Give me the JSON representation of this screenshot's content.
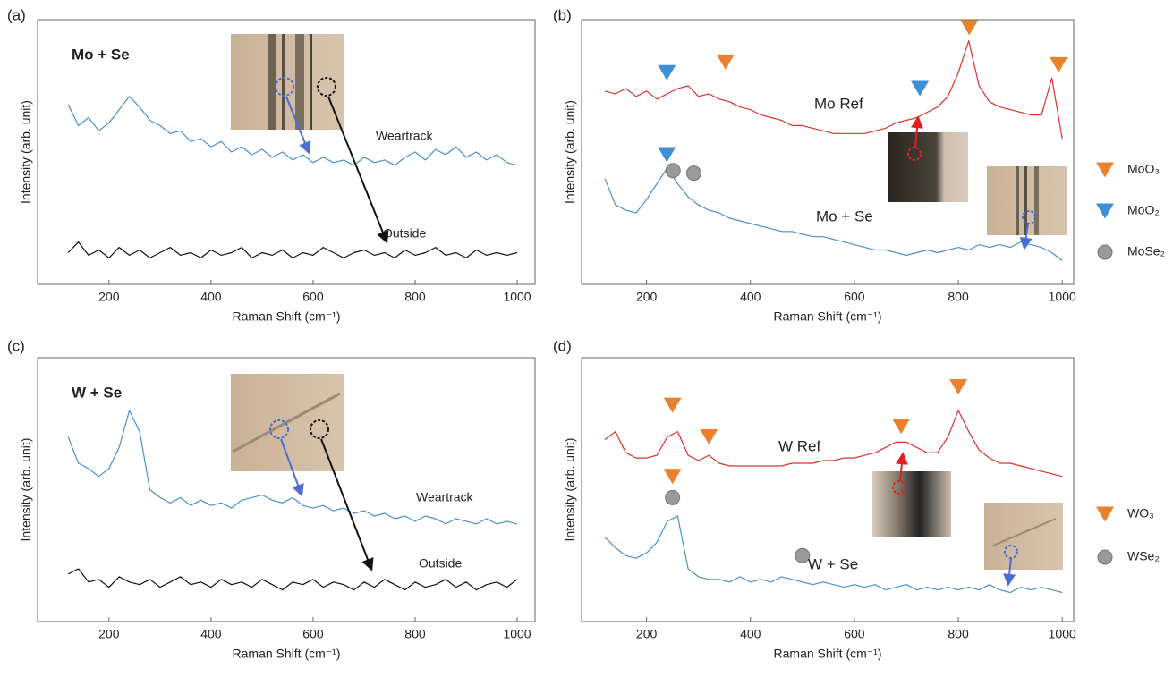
{
  "chart_data": [
    {
      "type": "line",
      "label": "(a)",
      "xlabel": "Raman Shift (cm⁻¹)",
      "ylabel": "Intensity (arb. unit)",
      "xlim": [
        60,
        1035
      ],
      "xticks": [
        200,
        400,
        600,
        800,
        1000
      ],
      "ylim": [
        0,
        100
      ],
      "annotations": [
        "Mo + Se",
        "Weartrack",
        "Outside"
      ],
      "x": [
        120,
        140,
        160,
        180,
        200,
        220,
        240,
        260,
        280,
        300,
        320,
        340,
        360,
        380,
        400,
        420,
        440,
        460,
        480,
        500,
        520,
        540,
        560,
        580,
        600,
        620,
        640,
        660,
        680,
        700,
        720,
        740,
        760,
        780,
        800,
        820,
        840,
        860,
        880,
        900,
        920,
        940,
        960,
        980,
        1000
      ],
      "series": [
        {
          "color": "#4a90c8",
          "values": [
            68,
            60,
            63,
            58,
            61,
            66,
            71,
            67,
            62,
            60,
            57,
            58,
            54,
            55,
            52,
            54,
            50,
            52,
            49,
            51,
            48,
            50,
            47,
            49,
            46,
            48,
            46,
            47,
            45,
            48,
            46,
            47,
            45,
            48,
            50,
            47,
            51,
            49,
            52,
            48,
            50,
            47,
            49,
            46,
            45
          ]
        },
        {
          "color": "#111111",
          "values": [
            12,
            16,
            11,
            13,
            10,
            14,
            11,
            13,
            10,
            12,
            14,
            11,
            12,
            10,
            13,
            11,
            12,
            14,
            10,
            12,
            11,
            13,
            10,
            12,
            11,
            14,
            12,
            10,
            12,
            13,
            11,
            12,
            10,
            13,
            11,
            12,
            14,
            11,
            12,
            10,
            13,
            11,
            12,
            11,
            12
          ]
        }
      ]
    },
    {
      "type": "line",
      "label": "(b)",
      "xlabel": "Raman Shift (cm⁻¹)",
      "ylabel": "Intensity (arb. unit)",
      "xlim": [
        75,
        1022
      ],
      "xticks": [
        200,
        400,
        600,
        800,
        1000
      ],
      "ylim": [
        0,
        100
      ],
      "annotations": [
        "Mo Ref",
        "Mo + Se"
      ],
      "x": [
        120,
        140,
        160,
        180,
        200,
        220,
        240,
        260,
        280,
        300,
        320,
        340,
        360,
        380,
        400,
        420,
        440,
        460,
        480,
        500,
        520,
        540,
        560,
        580,
        600,
        620,
        640,
        660,
        680,
        700,
        720,
        740,
        760,
        780,
        800,
        820,
        840,
        860,
        880,
        900,
        920,
        940,
        960,
        980,
        1000
      ],
      "series": [
        {
          "color": "#d9312b",
          "values": [
            73,
            72,
            74,
            71,
            73,
            70,
            72,
            74,
            75,
            71,
            72,
            70,
            69,
            67,
            66,
            64,
            63,
            62,
            60,
            60,
            59,
            58,
            57,
            57,
            57,
            57,
            58,
            59,
            61,
            62,
            63,
            65,
            67,
            71,
            80,
            92,
            75,
            69,
            67,
            66,
            65,
            64,
            64,
            78,
            55
          ]
        },
        {
          "color": "#4a90c8",
          "values": [
            40,
            30,
            28,
            27,
            32,
            38,
            44,
            38,
            33,
            30,
            28,
            27,
            25,
            24,
            23,
            22,
            21,
            20,
            20,
            19,
            18,
            18,
            17,
            16,
            15,
            14,
            13,
            13,
            12,
            11,
            12,
            13,
            12,
            13,
            14,
            13,
            15,
            14,
            15,
            14,
            16,
            15,
            14,
            12,
            9
          ]
        },
        {
          "name": "MoO₃",
          "marker": "triangle",
          "color": "#e8822e",
          "x": [
            352,
            821,
            993
          ],
          "values": [
            84,
            97,
            83
          ]
        },
        {
          "name": "MoO₂",
          "marker": "triangle",
          "color": "#3d8fd6",
          "x": [
            239,
            726,
            239
          ],
          "values": [
            80,
            74,
            49
          ]
        },
        {
          "name": "MoSe₂",
          "marker": "circle",
          "color": "#9a9a9a",
          "x": [
            251,
            291
          ],
          "values": [
            43,
            42
          ]
        }
      ]
    },
    {
      "type": "line",
      "label": "(c)",
      "xlabel": "Raman Shift (cm⁻¹)",
      "ylabel": "Intensity (arb. unit)",
      "xlim": [
        60,
        1035
      ],
      "xticks": [
        200,
        400,
        600,
        800,
        1000
      ],
      "ylim": [
        0,
        100
      ],
      "annotations": [
        "W + Se",
        "Weartrack",
        "Outside"
      ],
      "x": [
        120,
        140,
        160,
        180,
        200,
        220,
        240,
        260,
        280,
        300,
        320,
        340,
        360,
        380,
        400,
        420,
        440,
        460,
        480,
        500,
        520,
        540,
        560,
        580,
        600,
        620,
        640,
        660,
        680,
        700,
        720,
        740,
        760,
        780,
        800,
        820,
        840,
        860,
        880,
        900,
        920,
        940,
        960,
        980,
        1000
      ],
      "series": [
        {
          "color": "#4a90c8",
          "values": [
            70,
            60,
            58,
            55,
            58,
            66,
            80,
            72,
            50,
            47,
            45,
            47,
            44,
            46,
            44,
            45,
            43,
            46,
            47,
            48,
            46,
            45,
            47,
            44,
            43,
            44,
            42,
            43,
            41,
            42,
            40,
            41,
            39,
            40,
            38,
            40,
            39,
            37,
            39,
            38,
            37,
            39,
            37,
            38,
            37
          ]
        },
        {
          "color": "#111111",
          "values": [
            18,
            20,
            15,
            16,
            13,
            17,
            15,
            14,
            16,
            13,
            15,
            17,
            14,
            15,
            13,
            16,
            14,
            15,
            13,
            16,
            14,
            12,
            15,
            14,
            16,
            13,
            15,
            14,
            12,
            15,
            13,
            16,
            14,
            12,
            15,
            13,
            14,
            16,
            13,
            15,
            12,
            14,
            15,
            13,
            16
          ]
        }
      ]
    },
    {
      "type": "line",
      "label": "(d)",
      "xlabel": "Raman Shift (cm⁻¹)",
      "ylabel": "Intensity (arb. unit)",
      "xlim": [
        75,
        1022
      ],
      "xticks": [
        200,
        400,
        600,
        800,
        1000
      ],
      "ylim": [
        0,
        100
      ],
      "annotations": [
        "W Ref",
        "W + Se"
      ],
      "x": [
        120,
        140,
        160,
        180,
        200,
        220,
        240,
        260,
        280,
        300,
        320,
        340,
        360,
        380,
        400,
        420,
        440,
        460,
        480,
        500,
        520,
        540,
        560,
        580,
        600,
        620,
        640,
        660,
        680,
        700,
        720,
        740,
        760,
        780,
        800,
        820,
        840,
        860,
        880,
        900,
        920,
        940,
        960,
        980,
        1000
      ],
      "series": [
        {
          "color": "#d9312b",
          "values": [
            69,
            72,
            64,
            62,
            62,
            63,
            70,
            72,
            63,
            61,
            63,
            60,
            59,
            59,
            59,
            59,
            59,
            59,
            60,
            60,
            60,
            61,
            61,
            62,
            62,
            63,
            64,
            66,
            68,
            68,
            66,
            64,
            64,
            70,
            80,
            72,
            65,
            62,
            60,
            60,
            59,
            58,
            57,
            56,
            55
          ]
        },
        {
          "color": "#4a90c8",
          "values": [
            32,
            28,
            25,
            24,
            26,
            30,
            38,
            40,
            20,
            17,
            16,
            16,
            15,
            17,
            15,
            16,
            15,
            17,
            16,
            15,
            14,
            15,
            14,
            13,
            14,
            13,
            14,
            12,
            13,
            14,
            12,
            13,
            12,
            13,
            12,
            13,
            12,
            14,
            12,
            11,
            13,
            12,
            13,
            12,
            11
          ]
        },
        {
          "name": "WO₃",
          "marker": "triangle",
          "color": "#e8822e",
          "x": [
            250,
            320,
            690,
            800,
            250
          ],
          "values": [
            82,
            70,
            74,
            89,
            55
          ]
        },
        {
          "name": "WSe₂",
          "marker": "circle",
          "color": "#9a9a9a",
          "x": [
            250,
            500
          ],
          "values": [
            47,
            25
          ]
        }
      ]
    }
  ]
}
